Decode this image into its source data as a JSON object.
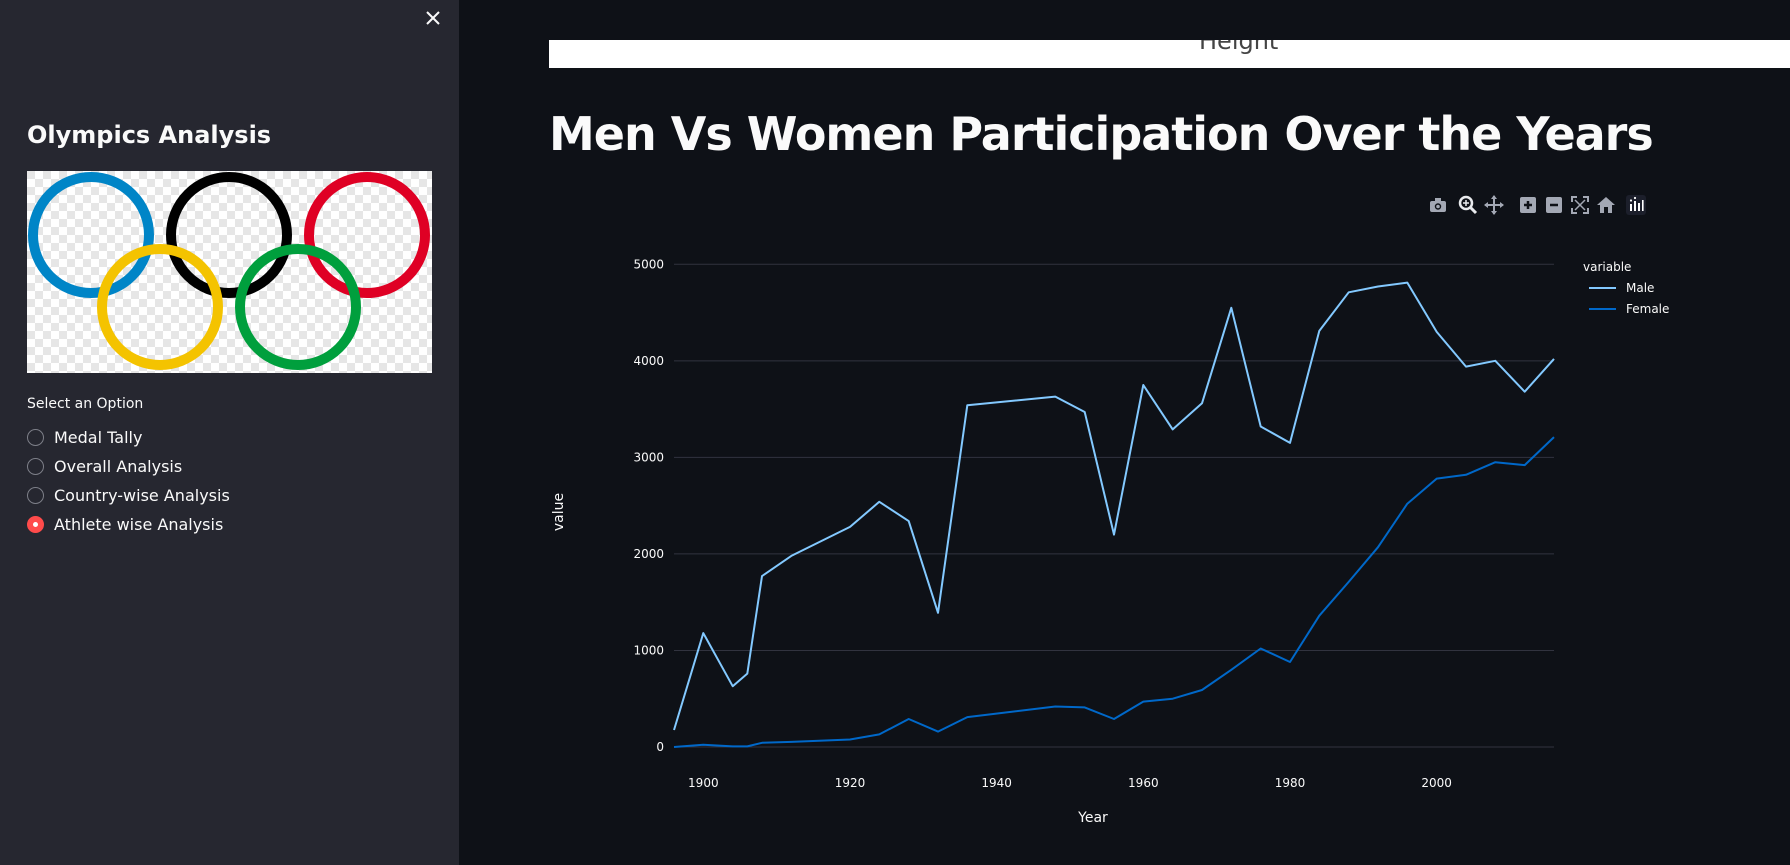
{
  "sidebar": {
    "title": "Olympics Analysis",
    "radio_label": "Select an Option",
    "options": [
      {
        "label": "Medal Tally",
        "selected": false
      },
      {
        "label": "Overall Analysis",
        "selected": false
      },
      {
        "label": "Country-wise Analysis",
        "selected": false
      },
      {
        "label": "Athlete wise Analysis",
        "selected": true
      }
    ],
    "icons": {
      "close": "close-icon",
      "logo": "olympic-rings-logo"
    }
  },
  "main": {
    "top_strip_text": "Height",
    "page_title": "Men Vs Women Participation Over the Years"
  },
  "modebar": [
    "camera-icon",
    "zoom-icon",
    "pan-icon",
    "zoom-in-icon",
    "zoom-out-icon",
    "autoscale-icon",
    "reset-axes-icon",
    "plotly-logo-icon"
  ],
  "colors": {
    "male": "#83c9ff",
    "female": "#0068c9",
    "accent": "#ff4b4b",
    "sidebar_bg": "#262730",
    "main_bg": "#0e1117"
  },
  "chart_data": {
    "type": "line",
    "xlabel": "Year",
    "ylabel": "value",
    "legend_title": "variable",
    "xlim": [
      1896,
      2016
    ],
    "ylim": [
      0,
      5200
    ],
    "x_ticks": [
      1900,
      1920,
      1940,
      1960,
      1980,
      2000
    ],
    "y_ticks": [
      0,
      1000,
      2000,
      3000,
      4000,
      5000
    ],
    "x": [
      1896,
      1900,
      1904,
      1906,
      1908,
      1912,
      1920,
      1924,
      1928,
      1932,
      1936,
      1948,
      1952,
      1956,
      1960,
      1964,
      1968,
      1972,
      1976,
      1980,
      1984,
      1988,
      1992,
      1996,
      2000,
      2004,
      2008,
      2012,
      2016
    ],
    "series": [
      {
        "name": "Male",
        "color": "#83c9ff",
        "values": [
          176,
          1180,
          630,
          760,
          1770,
          1980,
          2280,
          2540,
          2340,
          1390,
          3540,
          3630,
          3470,
          2200,
          3750,
          3290,
          3560,
          4550,
          3320,
          3150,
          4310,
          4710,
          4770,
          4810,
          4300,
          3940,
          4000,
          3680,
          4020
        ]
      },
      {
        "name": "Female",
        "color": "#0068c9",
        "values": [
          0,
          23,
          6,
          6,
          44,
          53,
          78,
          130,
          290,
          160,
          310,
          420,
          410,
          290,
          470,
          500,
          590,
          800,
          1020,
          880,
          1360,
          1710,
          2070,
          2520,
          2780,
          2820,
          2950,
          2920,
          3210
        ]
      }
    ]
  }
}
